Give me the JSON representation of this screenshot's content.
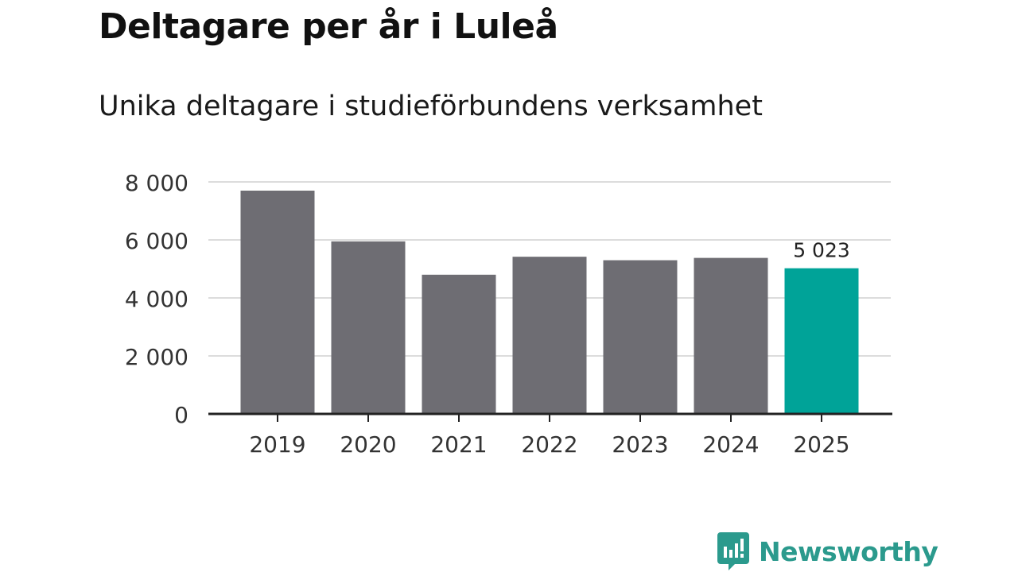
{
  "title": "Deltagare per år i Luleå",
  "subtitle": "Unika deltagare i studieförbundens verksamhet",
  "chart_data": {
    "type": "bar",
    "categories": [
      "2019",
      "2020",
      "2021",
      "2022",
      "2023",
      "2024",
      "2025"
    ],
    "values": [
      7700,
      5950,
      4800,
      5420,
      5300,
      5380,
      5023
    ],
    "ylim": [
      0,
      8000
    ],
    "yticks": [
      0,
      2000,
      4000,
      6000,
      8000
    ],
    "ytick_labels": [
      "0",
      "2 000",
      "4 000",
      "6 000",
      "8 000"
    ],
    "highlight_index": 6,
    "highlight_label": "5 023",
    "grid": true,
    "xlabel": "",
    "ylabel": ""
  },
  "colors": {
    "bar": "#6e6d73",
    "highlight": "#00a398",
    "grid": "#dcdcdc",
    "axis": "#222222",
    "brand": "#2b9a8d"
  },
  "brand": {
    "name": "Newsworthy",
    "icon": "newsworthy-logo-icon"
  }
}
